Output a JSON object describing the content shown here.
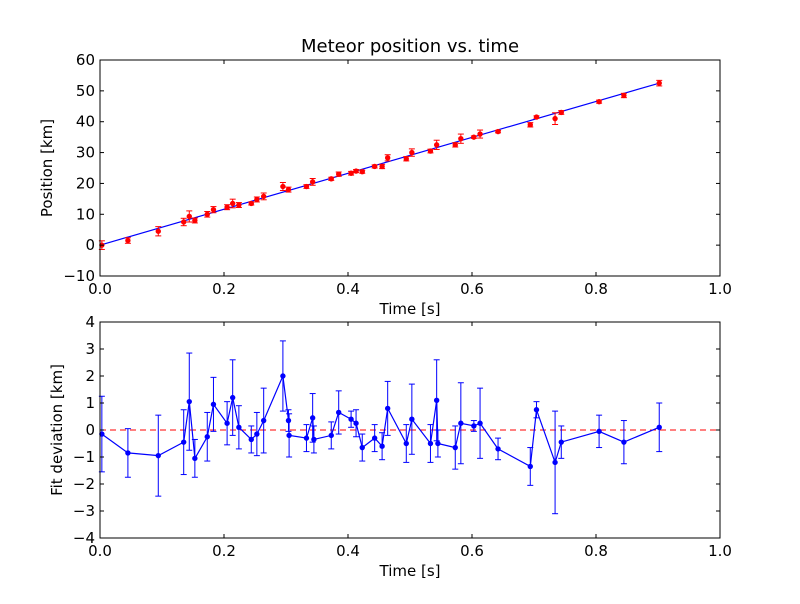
{
  "chart_data": [
    {
      "type": "scatter",
      "title": "Meteor position vs. time",
      "xlabel": "Time [s]",
      "ylabel": "Position [km]",
      "xlim": [
        0.0,
        1.0
      ],
      "ylim": [
        -10,
        60
      ],
      "xticks": [
        "0.0",
        "0.2",
        "0.4",
        "0.6",
        "0.8",
        "1.0"
      ],
      "yticks": [
        "−10",
        "0",
        "10",
        "20",
        "30",
        "40",
        "50",
        "60"
      ],
      "grid": false,
      "colors": {
        "points": "#ff0000",
        "fit": "#0000ff"
      },
      "series": [
        {
          "kind": "errorbar-points",
          "x": [
            0.003,
            0.045,
            0.094,
            0.135,
            0.144,
            0.153,
            0.173,
            0.183,
            0.205,
            0.214,
            0.224,
            0.244,
            0.253,
            0.264,
            0.295,
            0.304,
            0.333,
            0.343,
            0.373,
            0.385,
            0.405,
            0.413,
            0.423,
            0.443,
            0.455,
            0.464,
            0.494,
            0.503,
            0.533,
            0.543,
            0.573,
            0.582,
            0.603,
            0.613,
            0.642,
            0.694,
            0.704,
            0.734,
            0.744,
            0.805,
            0.845,
            0.902
          ],
          "y": [
            0.0,
            1.5,
            4.5,
            7.5,
            9.3,
            8.0,
            10.0,
            11.5,
            12.3,
            13.5,
            13.0,
            13.5,
            14.8,
            15.8,
            19.0,
            18.0,
            19.0,
            20.5,
            21.5,
            23.0,
            23.3,
            24.0,
            23.8,
            25.5,
            25.5,
            28.3,
            28.0,
            30.0,
            30.5,
            32.5,
            32.5,
            34.5,
            35.0,
            36.0,
            36.8,
            39.0,
            41.5,
            41.0,
            43.0,
            46.5,
            48.5,
            52.5
          ],
          "yerr": [
            1.4,
            0.9,
            1.5,
            1.2,
            1.8,
            0.8,
            0.9,
            1.0,
            0.8,
            1.4,
            0.8,
            0.5,
            0.8,
            1.1,
            1.3,
            0.8,
            0.6,
            1.1,
            0.5,
            0.7,
            0.6,
            0.5,
            0.5,
            0.5,
            0.7,
            1.0,
            0.7,
            1.2,
            0.6,
            1.5,
            0.7,
            1.5,
            0.4,
            1.3,
            0.4,
            0.7,
            0.4,
            1.9,
            0.6,
            0.5,
            0.7,
            0.9
          ]
        },
        {
          "kind": "fit-line",
          "x": [
            0.0,
            0.902
          ],
          "y": [
            0.0,
            52.5
          ]
        }
      ]
    },
    {
      "type": "line",
      "xlabel": "Time [s]",
      "ylabel": "Fit deviation [km]",
      "xlim": [
        0.0,
        1.0
      ],
      "ylim": [
        -4,
        4
      ],
      "xticks": [
        "0.0",
        "0.2",
        "0.4",
        "0.6",
        "0.8",
        "1.0"
      ],
      "yticks": [
        "−4",
        "−3",
        "−2",
        "−1",
        "0",
        "1",
        "2",
        "3",
        "4"
      ],
      "grid": false,
      "colors": {
        "line": "#0000ff",
        "reference": "#ff0000"
      },
      "reference_y": 0,
      "series": [
        {
          "kind": "errorbar-line",
          "x": [
            0.003,
            0.045,
            0.094,
            0.135,
            0.144,
            0.153,
            0.173,
            0.183,
            0.205,
            0.214,
            0.224,
            0.244,
            0.253,
            0.264,
            0.295,
            0.304,
            0.305,
            0.333,
            0.343,
            0.345,
            0.373,
            0.385,
            0.405,
            0.413,
            0.423,
            0.443,
            0.455,
            0.464,
            0.494,
            0.503,
            0.533,
            0.543,
            0.545,
            0.573,
            0.582,
            0.603,
            0.613,
            0.642,
            0.694,
            0.704,
            0.734,
            0.744,
            0.805,
            0.845,
            0.902
          ],
          "y": [
            -0.15,
            -0.85,
            -0.95,
            -0.45,
            1.05,
            -1.05,
            -0.25,
            0.95,
            0.25,
            1.2,
            0.1,
            -0.35,
            -0.15,
            0.35,
            2.0,
            0.35,
            -0.2,
            -0.3,
            0.45,
            -0.35,
            -0.2,
            0.65,
            0.4,
            0.25,
            -0.65,
            -0.3,
            -0.6,
            0.8,
            -0.5,
            0.4,
            -0.5,
            1.1,
            -0.5,
            -0.65,
            0.25,
            0.15,
            0.25,
            -0.7,
            -1.35,
            0.75,
            -1.2,
            -0.45,
            -0.05,
            -0.45,
            0.1
          ],
          "yerr": [
            1.4,
            0.9,
            1.5,
            1.2,
            1.8,
            0.7,
            0.9,
            1.0,
            0.8,
            1.4,
            0.8,
            0.5,
            0.8,
            1.2,
            1.3,
            0.4,
            0.8,
            0.5,
            0.9,
            0.5,
            0.5,
            0.8,
            0.3,
            0.5,
            0.5,
            0.5,
            0.5,
            1.0,
            0.7,
            1.3,
            0.7,
            1.5,
            0.5,
            0.8,
            1.5,
            0.2,
            1.3,
            0.4,
            0.7,
            0.3,
            1.9,
            0.6,
            0.6,
            0.8,
            0.9
          ]
        }
      ]
    }
  ]
}
